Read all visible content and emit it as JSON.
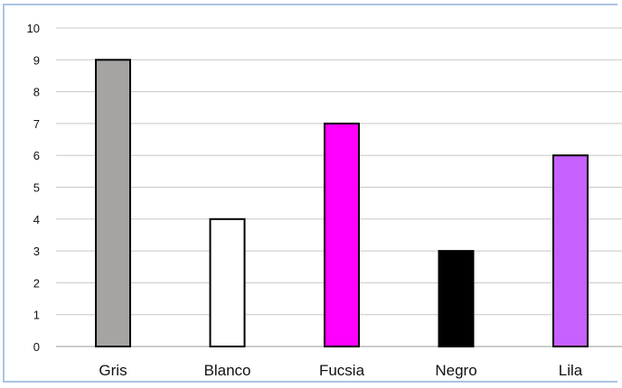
{
  "chart_data": {
    "type": "bar",
    "categories": [
      "Gris",
      "Blanco",
      "Fucsia",
      "Negro",
      "Lila"
    ],
    "values": [
      9,
      4,
      7,
      3,
      6
    ],
    "colors": [
      "#a6a3a3",
      "#ffffff",
      "#ff00ff",
      "#000000",
      "#c660ff"
    ],
    "title": "",
    "xlabel": "",
    "ylabel": "",
    "ylim": [
      0,
      10
    ],
    "yticks": [
      "0",
      "1",
      "2",
      "3",
      "4",
      "5",
      "6",
      "7",
      "8",
      "9",
      "10"
    ],
    "grid": true,
    "legend": "none"
  }
}
